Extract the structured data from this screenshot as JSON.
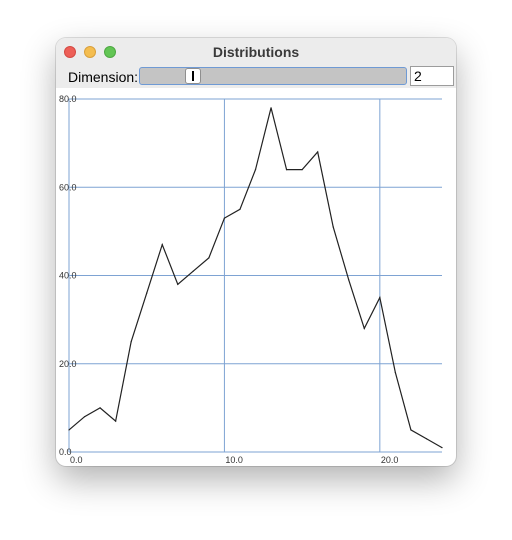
{
  "window": {
    "title": "Distributions"
  },
  "controls": {
    "dimension_label": "Dimension:",
    "dimension_value": "2",
    "slider_level": 0.18
  },
  "colors": {
    "grid": "#7ea3d3",
    "line": "#222222",
    "slider_border": "#6f9ad4"
  },
  "chart_data": {
    "type": "line",
    "x": [
      0,
      1,
      2,
      3,
      4,
      5,
      6,
      7,
      8,
      9,
      10,
      11,
      12,
      13,
      14,
      15,
      16,
      17,
      18,
      19,
      20,
      21,
      22,
      23,
      24
    ],
    "series": [
      {
        "values": [
          5,
          8,
          10,
          7,
          25,
          36,
          47,
          38,
          41,
          44,
          53,
          55,
          64,
          78,
          64,
          64,
          68,
          51,
          39,
          28,
          35,
          18,
          5,
          3,
          1
        ]
      }
    ],
    "xlim": [
      0,
      24
    ],
    "ylim": [
      0,
      80
    ],
    "x_ticks": [
      0,
      10,
      20
    ],
    "y_ticks": [
      0,
      20,
      40,
      60,
      80
    ],
    "x_tick_labels": [
      "0.0",
      "10.0",
      "20.0"
    ],
    "y_tick_labels": [
      "0.0",
      "20.0",
      "40.0",
      "60.0",
      "80.0"
    ],
    "grid": true
  }
}
